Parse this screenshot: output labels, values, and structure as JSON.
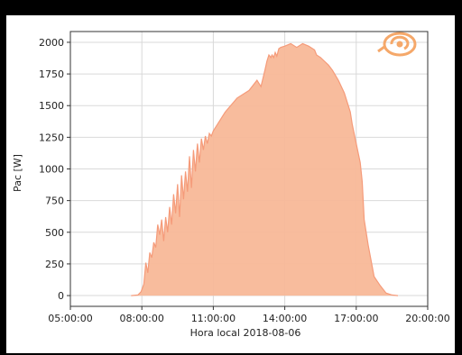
{
  "chart_data": {
    "type": "area",
    "title": "",
    "xlabel": "Hora local 2018-08-06",
    "ylabel": "Pac [W]",
    "x_ticks": [
      "05:00:00",
      "08:00:00",
      "11:00:00",
      "14:00:00",
      "17:00:00",
      "20:00:00"
    ],
    "y_ticks": [
      0,
      250,
      500,
      750,
      1000,
      1250,
      1500,
      1750,
      2000
    ],
    "xlim": [
      "05:00",
      "20:00"
    ],
    "ylim": [
      -85,
      2085
    ],
    "grid": true,
    "legend": "none",
    "colors": {
      "fill": "#f8b898",
      "line": "#f59b7a",
      "logo": "#f5a86a",
      "grid": "#d9d9d9",
      "axis": "#333333"
    },
    "logo_icon": "swirl-sun-logo",
    "series": [
      {
        "x": [
          "07:33",
          "07:50",
          "07:58",
          "08:05",
          "08:10",
          "08:15",
          "08:20",
          "08:25",
          "08:30",
          "08:35",
          "08:40",
          "08:45",
          "08:50",
          "08:55",
          "09:00",
          "09:05",
          "09:10",
          "09:15",
          "09:20",
          "09:25",
          "09:30",
          "09:35",
          "09:40",
          "09:45",
          "09:50",
          "09:55",
          "10:00",
          "10:05",
          "10:10",
          "10:15",
          "10:20",
          "10:25",
          "10:30",
          "10:35",
          "10:40",
          "10:45",
          "10:50",
          "10:55",
          "11:00",
          "11:30",
          "12:00",
          "12:30",
          "12:50",
          "13:00",
          "13:10",
          "13:15",
          "13:20",
          "13:25",
          "13:28",
          "13:32",
          "13:36",
          "13:40",
          "13:45",
          "13:50",
          "14:00",
          "14:15",
          "14:30",
          "14:45",
          "15:00",
          "15:15",
          "15:20",
          "15:30",
          "15:40",
          "15:50",
          "16:00",
          "16:15",
          "16:30",
          "16:45",
          "16:50",
          "17:00",
          "17:10",
          "17:15",
          "17:20",
          "17:30",
          "17:45",
          "18:00",
          "18:15",
          "18:30",
          "18:45"
        ],
        "values": [
          0,
          5,
          30,
          90,
          260,
          180,
          340,
          300,
          420,
          380,
          560,
          480,
          600,
          430,
          620,
          500,
          700,
          560,
          800,
          650,
          880,
          620,
          950,
          760,
          980,
          820,
          1100,
          850,
          1150,
          980,
          1200,
          1050,
          1240,
          1150,
          1260,
          1200,
          1280,
          1260,
          1300,
          1450,
          1560,
          1620,
          1700,
          1650,
          1780,
          1850,
          1900,
          1880,
          1900,
          1880,
          1920,
          1890,
          1950,
          1960,
          1970,
          1990,
          1960,
          1990,
          1970,
          1940,
          1900,
          1880,
          1850,
          1820,
          1780,
          1700,
          1600,
          1450,
          1350,
          1200,
          1050,
          900,
          600,
          400,
          150,
          80,
          20,
          5,
          0
        ]
      }
    ]
  }
}
